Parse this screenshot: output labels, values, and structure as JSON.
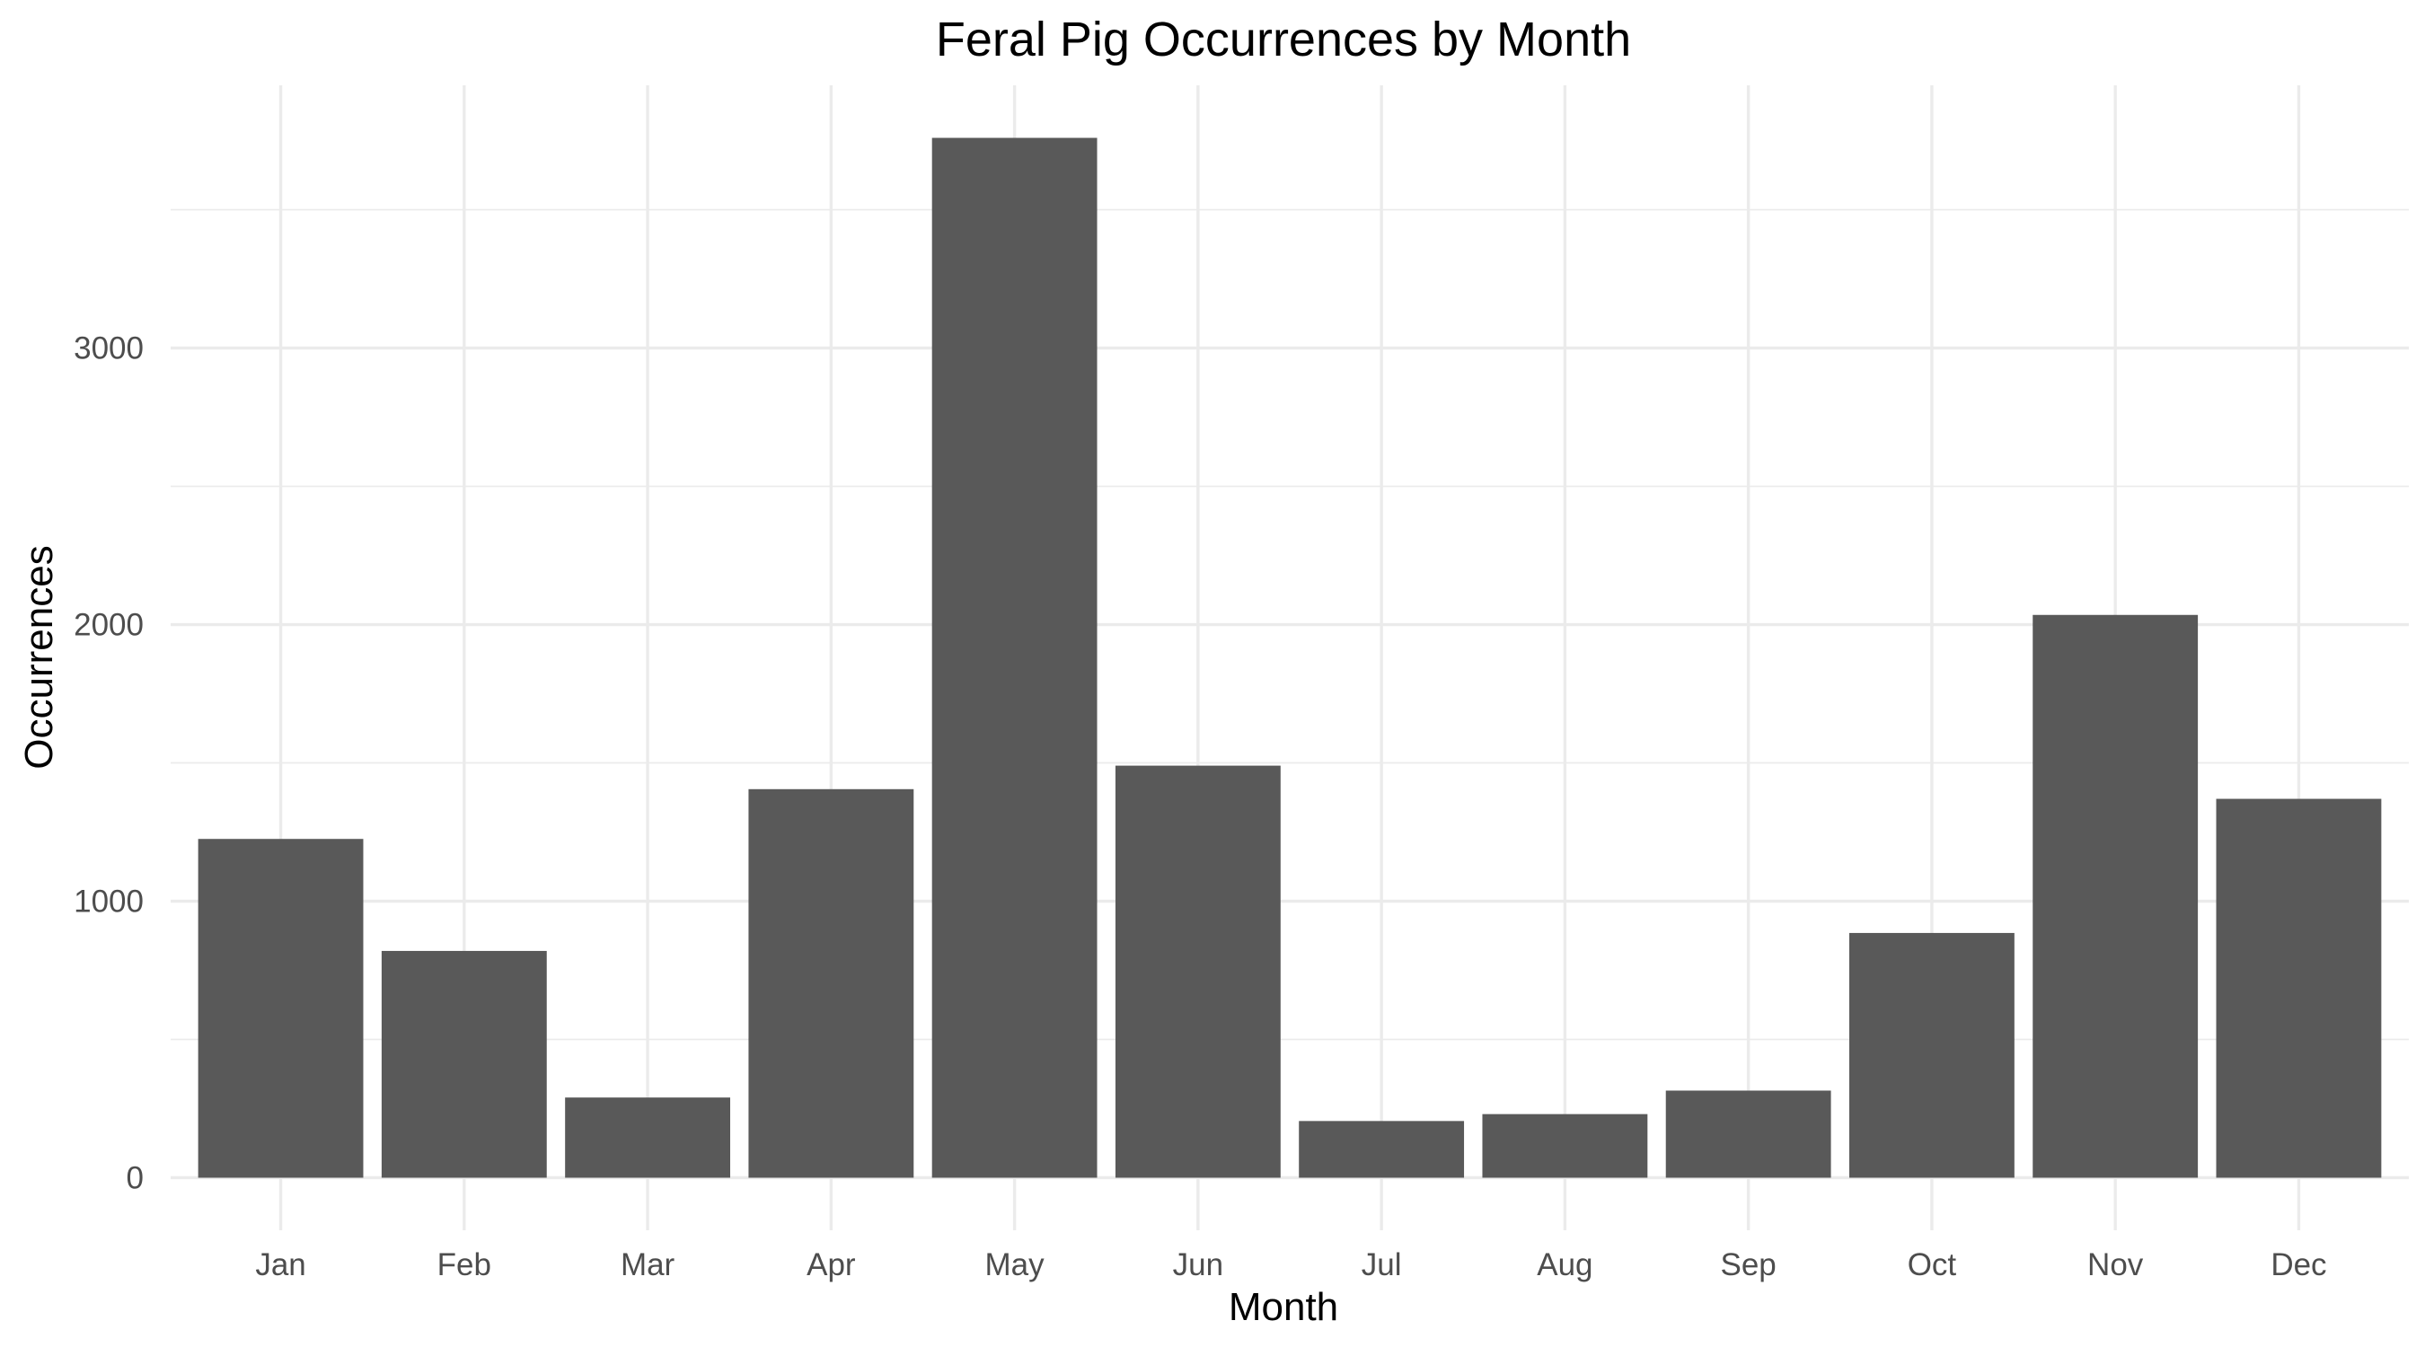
{
  "chart_data": {
    "type": "bar",
    "title": "Feral Pig Occurrences by Month",
    "xlabel": "Month",
    "ylabel": "Occurrences",
    "categories": [
      "Jan",
      "Feb",
      "Mar",
      "Apr",
      "May",
      "Jun",
      "Jul",
      "Aug",
      "Sep",
      "Oct",
      "Nov",
      "Dec"
    ],
    "values": [
      1225,
      820,
      290,
      1405,
      3760,
      1490,
      205,
      230,
      315,
      885,
      2035,
      1370
    ],
    "ylim": [
      -190,
      3950
    ],
    "y_ticks": [
      0,
      1000,
      2000,
      3000
    ],
    "y_tick_labels": [
      "0",
      "1000",
      "2000",
      "3000"
    ],
    "y_minor_ticks": [
      500,
      1500,
      2500,
      3500
    ],
    "grid": true,
    "legend": "none",
    "colors": {
      "bar": "#595959",
      "grid": "#ebebeb",
      "tick_text": "#4d4d4d",
      "title_text": "#000000",
      "background": "#ffffff"
    }
  }
}
